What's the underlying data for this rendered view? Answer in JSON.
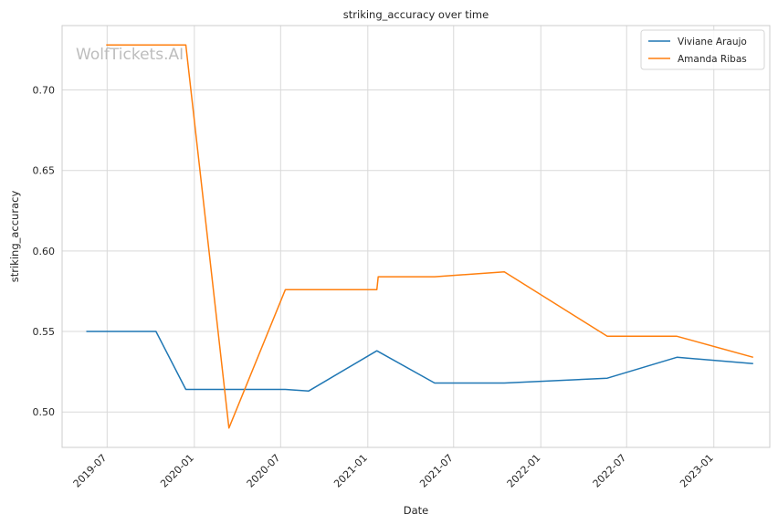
{
  "chart_data": {
    "type": "line",
    "title": "striking_accuracy over time",
    "xlabel": "Date",
    "ylabel": "striking_accuracy",
    "watermark": "WolfTickets.AI",
    "xlim": [
      "2019-03-28",
      "2023-04-29"
    ],
    "ylim": [
      0.478,
      0.74
    ],
    "x_ticks": [
      "2019-07",
      "2020-01",
      "2020-07",
      "2021-01",
      "2021-07",
      "2022-01",
      "2022-07",
      "2023-01"
    ],
    "y_ticks": [
      0.5,
      0.55,
      0.6,
      0.65,
      0.7
    ],
    "grid": true,
    "legend_position": "top-right",
    "colors": {
      "Viviane Araujo": "#1f77b4",
      "Amanda Ribas": "#ff7f0e"
    },
    "series": [
      {
        "name": "Viviane Araujo",
        "x": [
          "2019-05-18",
          "2019-10-12",
          "2019-12-14",
          "2020-07-11",
          "2020-08-29",
          "2021-01-20",
          "2021-05-22",
          "2021-10-16",
          "2022-05-21",
          "2022-10-15",
          "2023-03-25"
        ],
        "y": [
          0.55,
          0.55,
          0.514,
          0.514,
          0.513,
          0.538,
          0.518,
          0.518,
          0.521,
          0.534,
          0.53
        ]
      },
      {
        "name": "Amanda Ribas",
        "x": [
          "2019-06-29",
          "2019-12-14",
          "2020-03-14",
          "2020-07-11",
          "2021-01-20",
          "2021-01-23",
          "2021-05-22",
          "2021-10-16",
          "2022-05-21",
          "2022-10-15",
          "2023-03-25"
        ],
        "y": [
          0.728,
          0.728,
          0.49,
          0.576,
          0.576,
          0.584,
          0.584,
          0.587,
          0.547,
          0.547,
          0.534
        ]
      }
    ]
  }
}
